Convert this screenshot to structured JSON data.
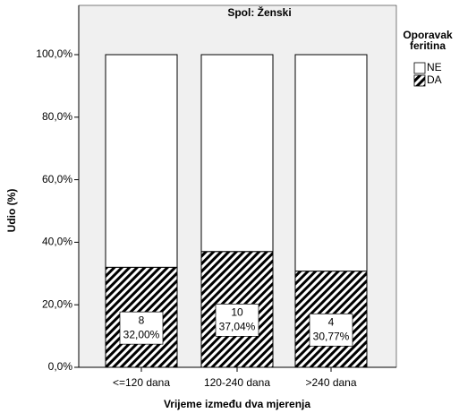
{
  "chart_data": {
    "type": "stacked_bar",
    "title": "Spol: Ženski",
    "xlabel": "Vrijeme između dva mjerenja",
    "ylabel": "Udio (%)",
    "legend_title": [
      "Oporavak",
      "feritina"
    ],
    "categories": [
      "<=120 dana",
      "120-240 dana",
      ">240 dana"
    ],
    "series": [
      {
        "name": "DA",
        "color": "hatch",
        "values": [
          32.0,
          37.04,
          30.77
        ],
        "value_labels": [
          "32,00%",
          "37,04%",
          "30,77%"
        ],
        "counts": [
          8,
          10,
          4
        ]
      },
      {
        "name": "NE",
        "color": "#ffffff",
        "values": [
          68.0,
          62.96,
          69.23
        ]
      }
    ],
    "ylim": [
      0,
      100
    ],
    "yticks": [
      {
        "value": 0,
        "label": "0,0%"
      },
      {
        "value": 20,
        "label": "20,0%"
      },
      {
        "value": 40,
        "label": "40,0%"
      },
      {
        "value": 60,
        "label": "60,0%"
      },
      {
        "value": 80,
        "label": "80,0%"
      },
      {
        "value": 100,
        "label": "100,0%"
      }
    ],
    "legend": "right"
  }
}
